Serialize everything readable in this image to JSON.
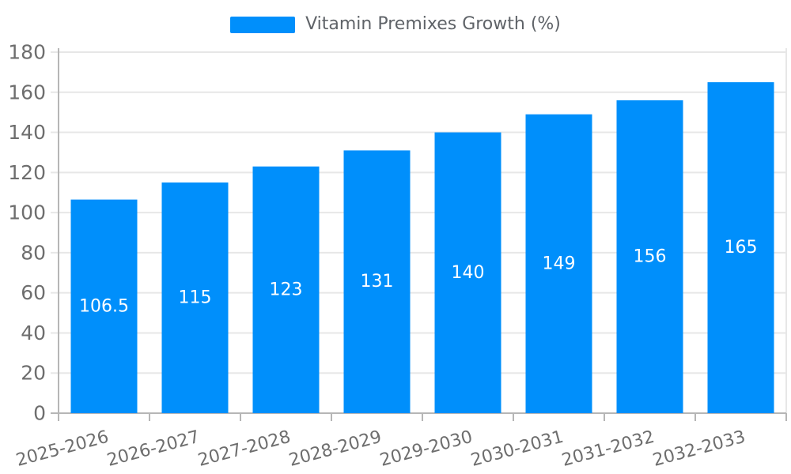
{
  "legend": {
    "label": "Vitamin Premixes Growth (%)"
  },
  "colors": {
    "bar": "#008FFB",
    "bar_label": "#ffffff",
    "grid": "#e7e7e7",
    "axis_line": "#b6b6b6",
    "plot_border_right": "#e7e7e7",
    "axis_label": "#6e6e6e",
    "legend_text": "#5f6368",
    "background": "#ffffff"
  },
  "chart_data": {
    "type": "bar",
    "title": "Vitamin Premixes Growth (%)",
    "categories": [
      "2025-2026",
      "2026-2027",
      "2027-2028",
      "2028-2029",
      "2029-2030",
      "2030-2031",
      "2031-2032",
      "2032-2033"
    ],
    "values": [
      106.5,
      115,
      123,
      131,
      140,
      149,
      156,
      165
    ],
    "value_labels": [
      "106.5",
      "115",
      "123",
      "131",
      "140",
      "149",
      "156",
      "165"
    ],
    "xlabel": "",
    "ylabel": "",
    "ylim": [
      0,
      180
    ],
    "ytick_step": 20,
    "ytick_labels": [
      "0",
      "20",
      "40",
      "60",
      "80",
      "100",
      "120",
      "140",
      "160",
      "180"
    ],
    "grid": true,
    "legend_position": "top",
    "x_label_rotation": -15,
    "data_labels": "inside-center"
  }
}
